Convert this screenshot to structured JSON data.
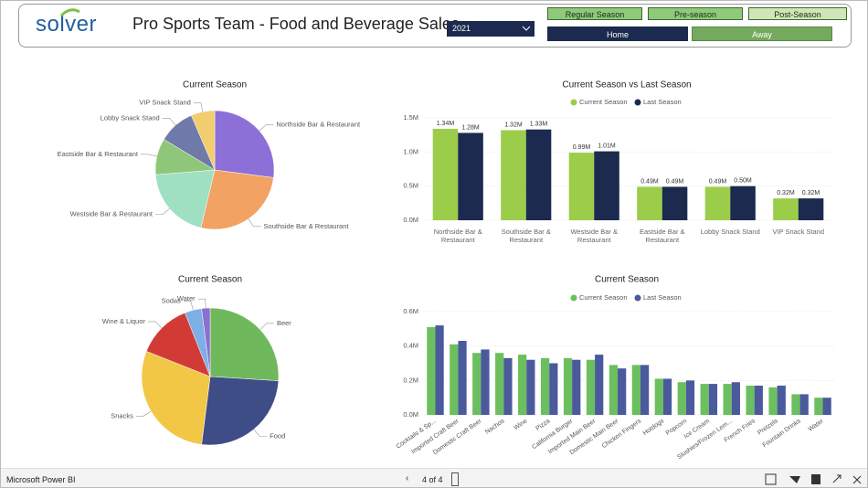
{
  "header": {
    "logo": "solver",
    "title": "Pro Sports Team - Food and Beverage Sales",
    "year": "2021",
    "season_buttons": [
      "Regular Season",
      "Pre-season",
      "Post-Season"
    ],
    "location_buttons": [
      "Home",
      "Away"
    ]
  },
  "chart_data": [
    {
      "type": "pie",
      "title": "Current Season",
      "categories": [
        "Northside Bar & Restaurant",
        "Southside Bar & Restaurant",
        "Westside Bar & Restaurant",
        "Eastside Bar & Restaurant",
        "Lobby Snack Stand",
        "VIP Snack Stand"
      ],
      "values": [
        1.34,
        1.32,
        0.99,
        0.49,
        0.49,
        0.32
      ],
      "colors": [
        "#8d6fd8",
        "#f2a262",
        "#9fe0c2",
        "#8ec77a",
        "#6f7aa8",
        "#f2cd6d"
      ]
    },
    {
      "type": "bar",
      "title": "Current Season vs Last Season",
      "categories": [
        "Northside Bar & Restaurant",
        "Southside Bar & Restaurant",
        "Westside Bar & Restaurant",
        "Eastside Bar & Restaurant",
        "Lobby Snack Stand",
        "VIP Snack Stand"
      ],
      "series": [
        {
          "name": "Current Season",
          "color": "#9ccd4a",
          "values": [
            1.34,
            1.32,
            0.99,
            0.49,
            0.49,
            0.32
          ],
          "value_labels": [
            "1.34M",
            "1.32M",
            "0.99M",
            "0.49M",
            "0.49M",
            "0.32M"
          ]
        },
        {
          "name": "Last Season",
          "color": "#1b2a4e",
          "values": [
            1.28,
            1.33,
            1.01,
            0.49,
            0.5,
            0.32
          ],
          "value_labels": [
            "1.28M",
            "1.33M",
            "1.01M",
            "0.49M",
            "0.50M",
            "0.32M"
          ]
        }
      ],
      "ylim": [
        0,
        1.5
      ],
      "yticks": [
        {
          "value": 0,
          "label": "0.0M"
        },
        {
          "value": 0.5,
          "label": "0.5M"
        },
        {
          "value": 1,
          "label": "1.0M"
        },
        {
          "value": 1.5,
          "label": "1.5M"
        }
      ]
    },
    {
      "type": "pie",
      "title": "Current Season",
      "categories": [
        "Beer",
        "Food",
        "Snacks",
        "Wine & Liquor",
        "Sodas",
        "Water"
      ],
      "values": [
        26,
        26,
        29,
        13,
        4,
        2
      ],
      "colors": [
        "#6fb95c",
        "#3f4d86",
        "#f2c746",
        "#d23b35",
        "#7eaee6",
        "#8c6fd0"
      ]
    },
    {
      "type": "bar",
      "title": "Current Season",
      "categories": [
        "Cocktails & Sp...",
        "Imported Craft Beer",
        "Domestic Craft Beer",
        "Nachos",
        "Wine",
        "Pizza",
        "California Burger",
        "Imported Main Beer",
        "Domestic Main Beer",
        "Chicken Fingers",
        "Hotdogs",
        "Popcorn",
        "Ice Cream",
        "Slushies/Frozen Lem...",
        "French Fries",
        "Pretzels",
        "Fountain Drinks",
        "Water"
      ],
      "series": [
        {
          "name": "Current Season",
          "color": "#6cbf5e",
          "values": [
            0.51,
            0.41,
            0.36,
            0.36,
            0.35,
            0.33,
            0.33,
            0.32,
            0.29,
            0.29,
            0.21,
            0.19,
            0.18,
            0.18,
            0.17,
            0.16,
            0.12,
            0.1
          ]
        },
        {
          "name": "Last Season",
          "color": "#4a5a9c",
          "values": [
            0.52,
            0.43,
            0.38,
            0.33,
            0.32,
            0.3,
            0.32,
            0.35,
            0.27,
            0.29,
            0.21,
            0.2,
            0.18,
            0.19,
            0.17,
            0.17,
            0.12,
            0.1
          ]
        }
      ],
      "ylim": [
        0,
        0.6
      ],
      "yticks": [
        {
          "value": 0,
          "label": "0.0M"
        },
        {
          "value": 0.2,
          "label": "0.2M"
        },
        {
          "value": 0.4,
          "label": "0.4M"
        },
        {
          "value": 0.6,
          "label": "0.6M"
        }
      ]
    }
  ],
  "footer": {
    "app": "Microsoft Power BI",
    "page": "4 of 4"
  }
}
